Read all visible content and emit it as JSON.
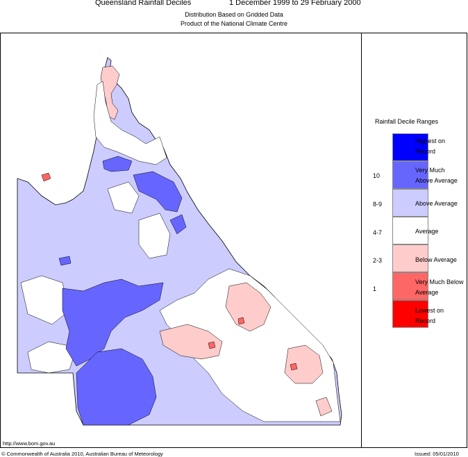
{
  "header": {
    "title": "Queensland Rainfall Deciles",
    "dates": "1 December 1999 to 29 February 2000",
    "subtitle1": "Distribution Based on Gridded Data",
    "subtitle2": "Product of the National Climate Centre"
  },
  "legend": {
    "title": "Rainfall Decile Ranges",
    "items": [
      {
        "label": "Highest on Record",
        "range": "",
        "color": "#0000ff"
      },
      {
        "label": "Very Much Above Average",
        "range": "10",
        "color": "#6666ff"
      },
      {
        "label": "Above Average",
        "range": "8-9",
        "color": "#ccccff"
      },
      {
        "label": "Average",
        "range": "4-7",
        "color": "#ffffff"
      },
      {
        "label": "Below Average",
        "range": "2-3",
        "color": "#ffcccc"
      },
      {
        "label": "Very Much Below Average",
        "range": "1",
        "color": "#ff6666"
      },
      {
        "label": "Lowest on Record",
        "range": "",
        "color": "#ff0000"
      }
    ]
  },
  "footer": {
    "url": "http://www.bom.gov.au",
    "copyright": "© Commonwealth of Australia 2010, Australian Bureau of Meteorology",
    "issued": "Issued: 05/01/2010"
  }
}
